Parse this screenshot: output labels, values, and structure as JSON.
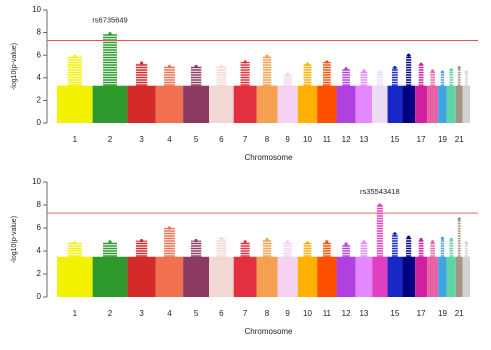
{
  "chart_data": [
    {
      "type": "manhattan",
      "xlabel": "Chromosome",
      "ylabel": "-log10(p-value)",
      "categories": [
        "1",
        "2",
        "3",
        "4",
        "5",
        "6",
        "7",
        "8",
        "9",
        "10",
        "11",
        "12",
        "13",
        null,
        "15",
        null,
        "17",
        null,
        "19",
        null,
        "21",
        null
      ],
      "colors": [
        "#f2f200",
        "#2e9a2e",
        "#d42a2a",
        "#f07050",
        "#8b3a62",
        "#f2d8d2",
        "#e23040",
        "#f5a050",
        "#f5d2f2",
        "#ffb000",
        "#ff5000",
        "#b040e0",
        "#e488ff",
        "#ecdcf4",
        "#1828c8",
        "#000080",
        "#d020a0",
        "#e664a6",
        "#40a4e4",
        "#60d4a4",
        "#a49484",
        "#d2d2d2"
      ],
      "dense_level": 3.3,
      "values": [
        5.9,
        7.9,
        5.3,
        5.0,
        5.0,
        5.0,
        5.4,
        5.9,
        4.3,
        5.2,
        5.4,
        4.8,
        4.6,
        4.5,
        4.9,
        6.0,
        5.2,
        4.6,
        4.5,
        4.7,
        4.9,
        4.5
      ],
      "threshold": 7.3,
      "annotation": "rs6735649",
      "ylim": [
        0,
        10
      ],
      "yticks": [
        0,
        2,
        4,
        6,
        8,
        10
      ]
    },
    {
      "type": "manhattan",
      "xlabel": "Chromosome",
      "ylabel": "-log10(p-value)",
      "categories": [
        "1",
        "2",
        "3",
        "4",
        "5",
        "6",
        "7",
        "8",
        "9",
        "10",
        "11",
        "12",
        "13",
        null,
        "15",
        null,
        "17",
        null,
        "19",
        null,
        "21",
        null
      ],
      "colors": [
        "#f2f200",
        "#2e9a2e",
        "#d42a2a",
        "#f07050",
        "#8b3a62",
        "#f2d8d2",
        "#e23040",
        "#f5a050",
        "#f5d2f2",
        "#ffb000",
        "#ff5000",
        "#b040e0",
        "#e488ff",
        "#e040c0",
        "#1828c8",
        "#000080",
        "#d020a0",
        "#e664a6",
        "#40a4e4",
        "#60d4a4",
        "#a49484",
        "#d2d2d2"
      ],
      "dense_level": 3.5,
      "values": [
        4.7,
        4.8,
        4.9,
        6.0,
        4.9,
        5.1,
        4.8,
        5.0,
        4.8,
        4.7,
        4.8,
        4.6,
        4.8,
        8.0,
        5.5,
        5.2,
        5.0,
        4.8,
        5.1,
        5.0,
        6.8,
        4.7
      ],
      "threshold": 7.3,
      "annotation": "rs35543418",
      "ylim": [
        0,
        10
      ],
      "yticks": [
        0,
        2,
        4,
        6,
        8,
        10
      ]
    }
  ]
}
